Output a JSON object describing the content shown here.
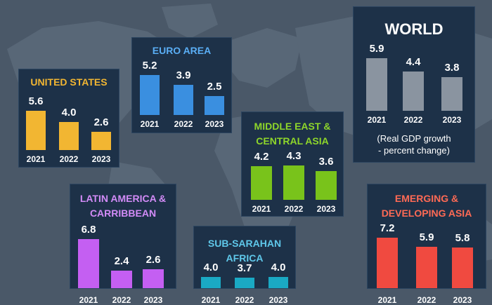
{
  "colors": {
    "background": "#4a5868",
    "panel": "#1d3148",
    "map_land": "#5b6a7a"
  },
  "chart_data": [
    {
      "type": "bar",
      "title": "UNITED STATES",
      "color": "#f2b632",
      "title_color": "#f2b632",
      "categories": [
        "2021",
        "2022",
        "2023"
      ],
      "values": [
        5.6,
        4.0,
        2.6
      ],
      "value_labels": [
        "5.6",
        "4.0",
        "2.6"
      ]
    },
    {
      "type": "bar",
      "title": "EURO AREA",
      "color": "#3a8fe0",
      "title_color": "#5aaef5",
      "categories": [
        "2021",
        "2022",
        "2023"
      ],
      "values": [
        5.2,
        3.9,
        2.5
      ],
      "value_labels": [
        "5.2",
        "3.9",
        "2.5"
      ]
    },
    {
      "type": "bar",
      "title": "WORLD",
      "color": "#8a94a0",
      "title_color": "#ffffff",
      "categories": [
        "2021",
        "2022",
        "2023"
      ],
      "values": [
        5.9,
        4.4,
        3.8
      ],
      "value_labels": [
        "5.9",
        "4.4",
        "3.8"
      ],
      "note": [
        "(Real GDP growth",
        "- percent change)"
      ]
    },
    {
      "type": "bar",
      "title": "MIDDLE EAST & CENTRAL ASIA",
      "color": "#79c31b",
      "title_color": "#8ed62a",
      "categories": [
        "2021",
        "2022",
        "2023"
      ],
      "values": [
        4.2,
        4.3,
        3.6
      ],
      "value_labels": [
        "4.2",
        "4.3",
        "3.6"
      ]
    },
    {
      "type": "bar",
      "title": "LATIN AMERICA & CARRIBBEAN",
      "color": "#c45ff2",
      "title_color": "#d28bf7",
      "categories": [
        "2021",
        "2022",
        "2023"
      ],
      "values": [
        6.8,
        2.4,
        2.6
      ],
      "value_labels": [
        "6.8",
        "2.4",
        "2.6"
      ]
    },
    {
      "type": "bar",
      "title": "SUB-SARAHAN AFRICA",
      "color": "#1aa9c4",
      "title_color": "#5fc8ea",
      "categories": [
        "2021",
        "2022",
        "2023"
      ],
      "values": [
        4.0,
        3.7,
        4.0
      ],
      "value_labels": [
        "4.0",
        "3.7",
        "4.0"
      ]
    },
    {
      "type": "bar",
      "title": "EMERGING & DEVELOPING ASIA",
      "color": "#f04a40",
      "title_color": "#ff6a55",
      "categories": [
        "2021",
        "2022",
        "2023"
      ],
      "values": [
        7.2,
        5.9,
        5.8
      ],
      "value_labels": [
        "7.2",
        "5.9",
        "5.8"
      ]
    }
  ]
}
